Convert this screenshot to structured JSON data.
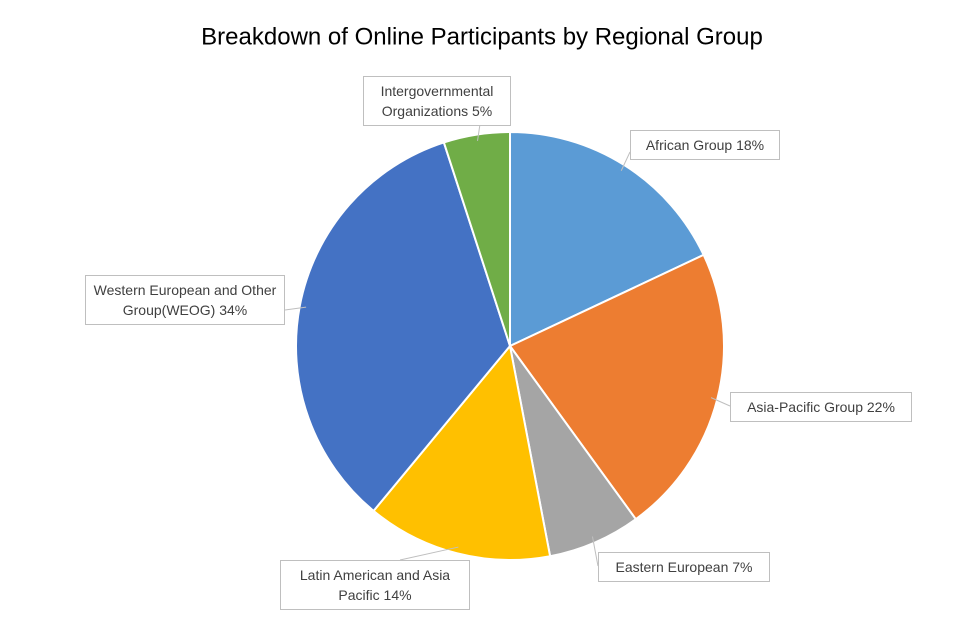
{
  "chart_data": {
    "type": "pie",
    "title": "Breakdown of Online Participants by Regional Group",
    "categories": [
      "African Group",
      "Asia-Pacific Group",
      "Eastern European",
      "Latin American and Asia Pacific",
      "Western European and Other Group(WEOG)",
      "Intergovernmental Organizations"
    ],
    "values": [
      18,
      22,
      7,
      14,
      34,
      5
    ],
    "value_labels": [
      "18%",
      "22%",
      "7%",
      "14%",
      "34%",
      "5%"
    ],
    "colors": [
      "#5b9bd5",
      "#ed7d31",
      "#a5a5a5",
      "#ffc000",
      "#4472c4",
      "#70ad47"
    ]
  }
}
